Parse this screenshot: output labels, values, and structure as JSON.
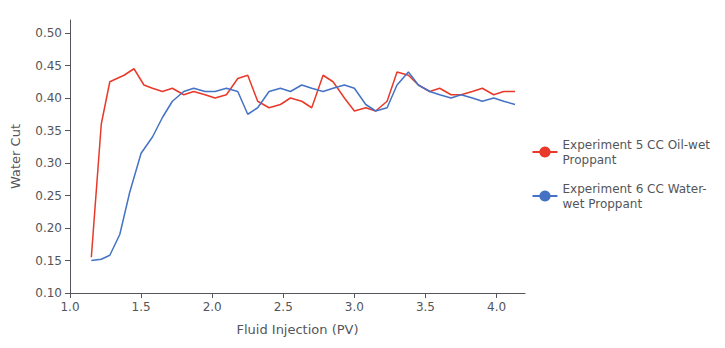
{
  "chart_data": {
    "type": "line",
    "xlabel": "Fluid Injection (PV)",
    "ylabel": "Water Cut",
    "xlim": [
      1.0,
      4.2
    ],
    "ylim": [
      0.1,
      0.52
    ],
    "xticks": [
      {
        "value": 1.0,
        "label": "1.0"
      },
      1.5,
      {
        "value": 2.0,
        "label": "2.0"
      },
      2.5,
      {
        "value": 3.0,
        "label": "3.0"
      },
      3.5,
      {
        "value": 4.0,
        "label": "4.0"
      }
    ],
    "yticks": [
      {
        "value": 0.1,
        "label": "0.10"
      },
      0.15,
      {
        "value": 0.2,
        "label": "0.20"
      },
      0.25,
      {
        "value": 0.3,
        "label": "0.30"
      },
      0.35,
      {
        "value": 0.4,
        "label": "0.40"
      },
      0.45,
      {
        "value": 0.5,
        "label": "0.50"
      }
    ],
    "grid": false,
    "legend": "right",
    "series": [
      {
        "name": "Experiment 5 CC Oil-wet\nProppant",
        "color": "#e8392a",
        "x": [
          1.15,
          1.22,
          1.28,
          1.33,
          1.38,
          1.45,
          1.52,
          1.58,
          1.65,
          1.72,
          1.8,
          1.87,
          1.95,
          2.02,
          2.1,
          2.18,
          2.25,
          2.32,
          2.4,
          2.48,
          2.55,
          2.63,
          2.7,
          2.78,
          2.85,
          2.93,
          3.0,
          3.08,
          3.15,
          3.23,
          3.3,
          3.38,
          3.45,
          3.53,
          3.6,
          3.68,
          3.75,
          3.83,
          3.9,
          3.98,
          4.05,
          4.13
        ],
        "values": [
          0.155,
          0.36,
          0.425,
          0.43,
          0.435,
          0.445,
          0.42,
          0.415,
          0.41,
          0.415,
          0.405,
          0.41,
          0.405,
          0.4,
          0.405,
          0.43,
          0.435,
          0.395,
          0.385,
          0.39,
          0.4,
          0.395,
          0.385,
          0.435,
          0.425,
          0.4,
          0.38,
          0.385,
          0.38,
          0.395,
          0.44,
          0.435,
          0.42,
          0.41,
          0.415,
          0.405,
          0.405,
          0.41,
          0.415,
          0.405,
          0.41,
          0.41
        ]
      },
      {
        "name": "Experiment 6 CC Water-\nwet Proppant",
        "color": "#4472c4",
        "x": [
          1.15,
          1.22,
          1.28,
          1.35,
          1.42,
          1.5,
          1.58,
          1.65,
          1.72,
          1.8,
          1.87,
          1.95,
          2.02,
          2.1,
          2.18,
          2.25,
          2.32,
          2.4,
          2.48,
          2.55,
          2.63,
          2.7,
          2.78,
          2.85,
          2.93,
          3.0,
          3.08,
          3.15,
          3.23,
          3.3,
          3.38,
          3.45,
          3.53,
          3.6,
          3.68,
          3.75,
          3.83,
          3.9,
          3.98,
          4.05,
          4.13
        ],
        "values": [
          0.15,
          0.152,
          0.158,
          0.19,
          0.255,
          0.315,
          0.34,
          0.37,
          0.395,
          0.41,
          0.415,
          0.41,
          0.41,
          0.415,
          0.41,
          0.375,
          0.385,
          0.41,
          0.415,
          0.41,
          0.42,
          0.415,
          0.41,
          0.415,
          0.42,
          0.415,
          0.39,
          0.38,
          0.385,
          0.42,
          0.44,
          0.42,
          0.41,
          0.405,
          0.4,
          0.405,
          0.4,
          0.395,
          0.4,
          0.395,
          0.39
        ]
      }
    ]
  }
}
